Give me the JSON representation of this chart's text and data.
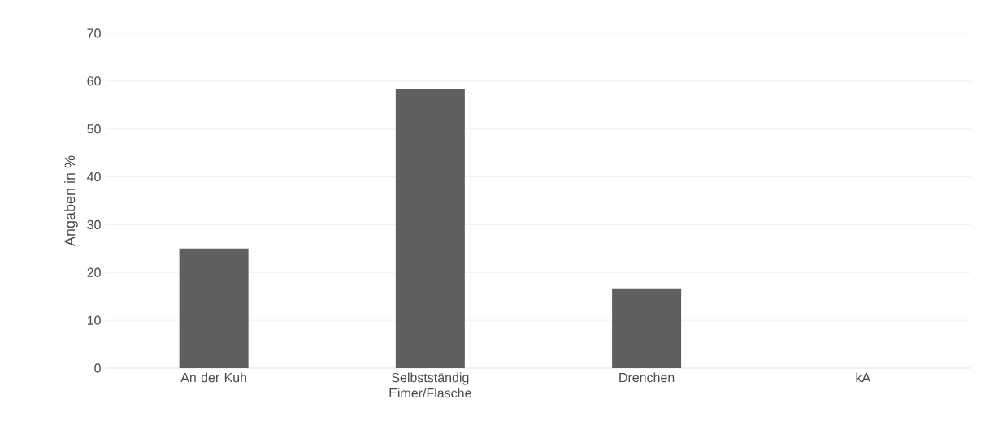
{
  "chart_data": {
    "type": "bar",
    "ylabel": "Angaben in %",
    "categories": [
      "An der Kuh",
      "Selbstständig Eimer/Flasche",
      "Drenchen",
      "kA"
    ],
    "values": [
      25,
      58.3,
      16.7,
      0
    ],
    "color": "#5f5f5f",
    "ylim": [
      0,
      70
    ],
    "yticks": [
      0,
      10,
      20,
      30,
      40,
      50,
      60,
      70
    ],
    "grid": "y"
  }
}
